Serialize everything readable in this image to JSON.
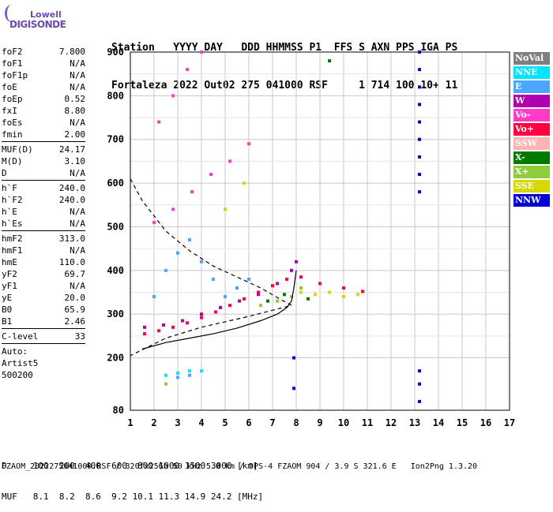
{
  "logo": {
    "line1": "Lowell",
    "line2": "DIGISONDE"
  },
  "header": {
    "line1": "Station   YYYY DAY   DDD HHMMSS P1  FFS S AXN PPS IGA PS",
    "line2": "Fortaleza 2022 Out02 275 041000 RSF     1 714 100 10+ 11"
  },
  "params_groups": [
    [
      {
        "k": "foF2",
        "v": "7.800"
      },
      {
        "k": "foF1",
        "v": "N/A"
      },
      {
        "k": "foF1p",
        "v": "N/A"
      },
      {
        "k": "foE",
        "v": "N/A"
      },
      {
        "k": "foEp",
        "v": "0.52"
      },
      {
        "k": "fxI",
        "v": "8.80"
      },
      {
        "k": "foEs",
        "v": "N/A"
      },
      {
        "k": "fmin",
        "v": "2.00"
      }
    ],
    [
      {
        "k": "MUF(D)",
        "v": "24.17"
      },
      {
        "k": "M(D)",
        "v": "3.10"
      },
      {
        "k": "D",
        "v": "N/A"
      }
    ],
    [
      {
        "k": "h`F",
        "v": "240.0"
      },
      {
        "k": "h`F2",
        "v": "240.0"
      },
      {
        "k": "h`E",
        "v": "N/A"
      },
      {
        "k": "h`Es",
        "v": "N/A"
      }
    ],
    [
      {
        "k": "hmF2",
        "v": "313.0"
      },
      {
        "k": "hmF1",
        "v": "N/A"
      },
      {
        "k": "hmE",
        "v": "110.0"
      },
      {
        "k": "yF2",
        "v": "69.7"
      },
      {
        "k": "yF1",
        "v": "N/A"
      },
      {
        "k": "yE",
        "v": "20.0"
      },
      {
        "k": "B0",
        "v": "65.9"
      },
      {
        "k": "B1",
        "v": "2.46"
      }
    ],
    [
      {
        "k": "C-level",
        "v": "33"
      }
    ]
  ],
  "aux": {
    "line1": "Auto:",
    "line2": "Artist5",
    "line3": "500200"
  },
  "legend": [
    {
      "label": "NoVal",
      "color": "#7f7f7f"
    },
    {
      "label": "NNE",
      "color": "#00e5ff"
    },
    {
      "label": "E",
      "color": "#4aa6ff"
    },
    {
      "label": "W",
      "color": "#b000b0"
    },
    {
      "label": "Vo-",
      "color": "#ff3bc8"
    },
    {
      "label": "Vo+",
      "color": "#ff0040"
    },
    {
      "label": "SSW",
      "color": "#ffb3b3"
    },
    {
      "label": "X-",
      "color": "#007a00"
    },
    {
      "label": "X+",
      "color": "#8fcc3a"
    },
    {
      "label": "SSE",
      "color": "#d7d700"
    },
    {
      "label": "NNW",
      "color": "#0000d8"
    }
  ],
  "muf_table": {
    "line1": "D     100  200  400  600  800 1000 1500 3000 [km]",
    "line2": "MUF   8.1  8.2  8.6  9.2 10.1 11.3 14.9 24.2 [MHz]"
  },
  "footer": "FZAOM_2022275041000.RSF / 320fx256h 50 kHz 5.0 km / DPS-4 FZAOM 904 / 3.9 S 321.6 E   Ion2Png 1.3.20",
  "chart_data": {
    "type": "scatter",
    "title": "",
    "xlabel": "",
    "ylabel": "",
    "xlim": [
      1,
      17
    ],
    "ylim": [
      80,
      900
    ],
    "x_ticks": [
      "1",
      "2",
      "3",
      "4",
      "5",
      "6",
      "7",
      "8",
      "9",
      "10",
      "11",
      "12",
      "13",
      "14",
      "15",
      "16",
      "17"
    ],
    "y_ticks": [
      "80",
      "200",
      "300",
      "400",
      "500",
      "600",
      "700",
      "800",
      "900"
    ],
    "grid": true,
    "series": [
      {
        "color": "#ff0040",
        "points": [
          [
            1.6,
            255
          ],
          [
            2.2,
            262
          ],
          [
            2.8,
            270
          ],
          [
            3.4,
            280
          ],
          [
            4.0,
            292
          ],
          [
            4.6,
            305
          ],
          [
            5.2,
            320
          ],
          [
            5.8,
            335
          ],
          [
            6.4,
            350
          ],
          [
            7.0,
            365
          ],
          [
            7.6,
            380
          ],
          [
            8.2,
            385
          ],
          [
            9.0,
            370
          ],
          [
            10.0,
            360
          ],
          [
            10.8,
            352
          ]
        ]
      },
      {
        "color": "#b000b0",
        "points": [
          [
            1.6,
            270
          ],
          [
            2.4,
            275
          ],
          [
            3.2,
            285
          ],
          [
            4.0,
            300
          ],
          [
            4.8,
            315
          ],
          [
            5.6,
            330
          ],
          [
            6.4,
            345
          ],
          [
            7.2,
            370
          ],
          [
            7.8,
            400
          ],
          [
            8.0,
            420
          ]
        ]
      },
      {
        "color": "#4aa6ff",
        "points": [
          [
            2.0,
            340
          ],
          [
            2.5,
            400
          ],
          [
            3.0,
            440
          ],
          [
            3.5,
            470
          ],
          [
            4.0,
            420
          ],
          [
            4.5,
            380
          ],
          [
            5.0,
            340
          ],
          [
            5.5,
            360
          ],
          [
            6.0,
            380
          ],
          [
            3.0,
            155
          ],
          [
            3.5,
            160
          ]
        ]
      },
      {
        "color": "#00e5ff",
        "points": [
          [
            2.5,
            160
          ],
          [
            3.0,
            165
          ],
          [
            3.5,
            170
          ],
          [
            4.0,
            170
          ]
        ]
      },
      {
        "color": "#ff3bc8",
        "points": [
          [
            2.0,
            510
          ],
          [
            2.8,
            540
          ],
          [
            3.6,
            580
          ],
          [
            4.4,
            620
          ],
          [
            5.2,
            650
          ],
          [
            6.0,
            690
          ],
          [
            2.2,
            740
          ],
          [
            2.8,
            800
          ],
          [
            3.4,
            860
          ],
          [
            4.0,
            900
          ]
        ]
      },
      {
        "color": "#d7d700",
        "points": [
          [
            8.2,
            350
          ],
          [
            8.8,
            345
          ],
          [
            9.4,
            350
          ],
          [
            10.0,
            340
          ],
          [
            10.6,
            345
          ],
          [
            5.0,
            540
          ],
          [
            5.8,
            600
          ]
        ]
      },
      {
        "color": "#8fcc3a",
        "points": [
          [
            6.5,
            320
          ],
          [
            7.2,
            330
          ],
          [
            7.8,
            340
          ],
          [
            8.2,
            360
          ],
          [
            2.5,
            140
          ]
        ]
      },
      {
        "color": "#007a00",
        "points": [
          [
            6.8,
            330
          ],
          [
            7.5,
            345
          ],
          [
            8.5,
            335
          ],
          [
            9.4,
            880
          ]
        ]
      },
      {
        "color": "#0000d8",
        "points": [
          [
            13.2,
            900
          ],
          [
            13.2,
            860
          ],
          [
            13.2,
            820
          ],
          [
            13.2,
            780
          ],
          [
            13.2,
            740
          ],
          [
            13.2,
            700
          ],
          [
            13.2,
            660
          ],
          [
            13.2,
            620
          ],
          [
            13.2,
            580
          ],
          [
            13.2,
            170
          ],
          [
            13.2,
            140
          ],
          [
            13.2,
            100
          ],
          [
            7.9,
            200
          ],
          [
            7.9,
            130
          ]
        ]
      }
    ],
    "profile_curve": [
      [
        1.5,
        220
      ],
      [
        2.5,
        235
      ],
      [
        3.5,
        245
      ],
      [
        4.5,
        255
      ],
      [
        5.5,
        268
      ],
      [
        6.5,
        285
      ],
      [
        7.2,
        300
      ],
      [
        7.6,
        315
      ],
      [
        7.8,
        330
      ],
      [
        7.9,
        360
      ],
      [
        8.0,
        400
      ]
    ],
    "dashed_curve": [
      [
        1.0,
        610
      ],
      [
        1.5,
        560
      ],
      [
        2.5,
        490
      ],
      [
        3.5,
        445
      ],
      [
        4.5,
        410
      ],
      [
        5.5,
        385
      ],
      [
        6.5,
        360
      ],
      [
        7.3,
        335
      ],
      [
        7.8,
        320
      ],
      [
        6.0,
        295
      ],
      [
        4.0,
        270
      ],
      [
        2.5,
        245
      ],
      [
        1.0,
        205
      ]
    ]
  }
}
